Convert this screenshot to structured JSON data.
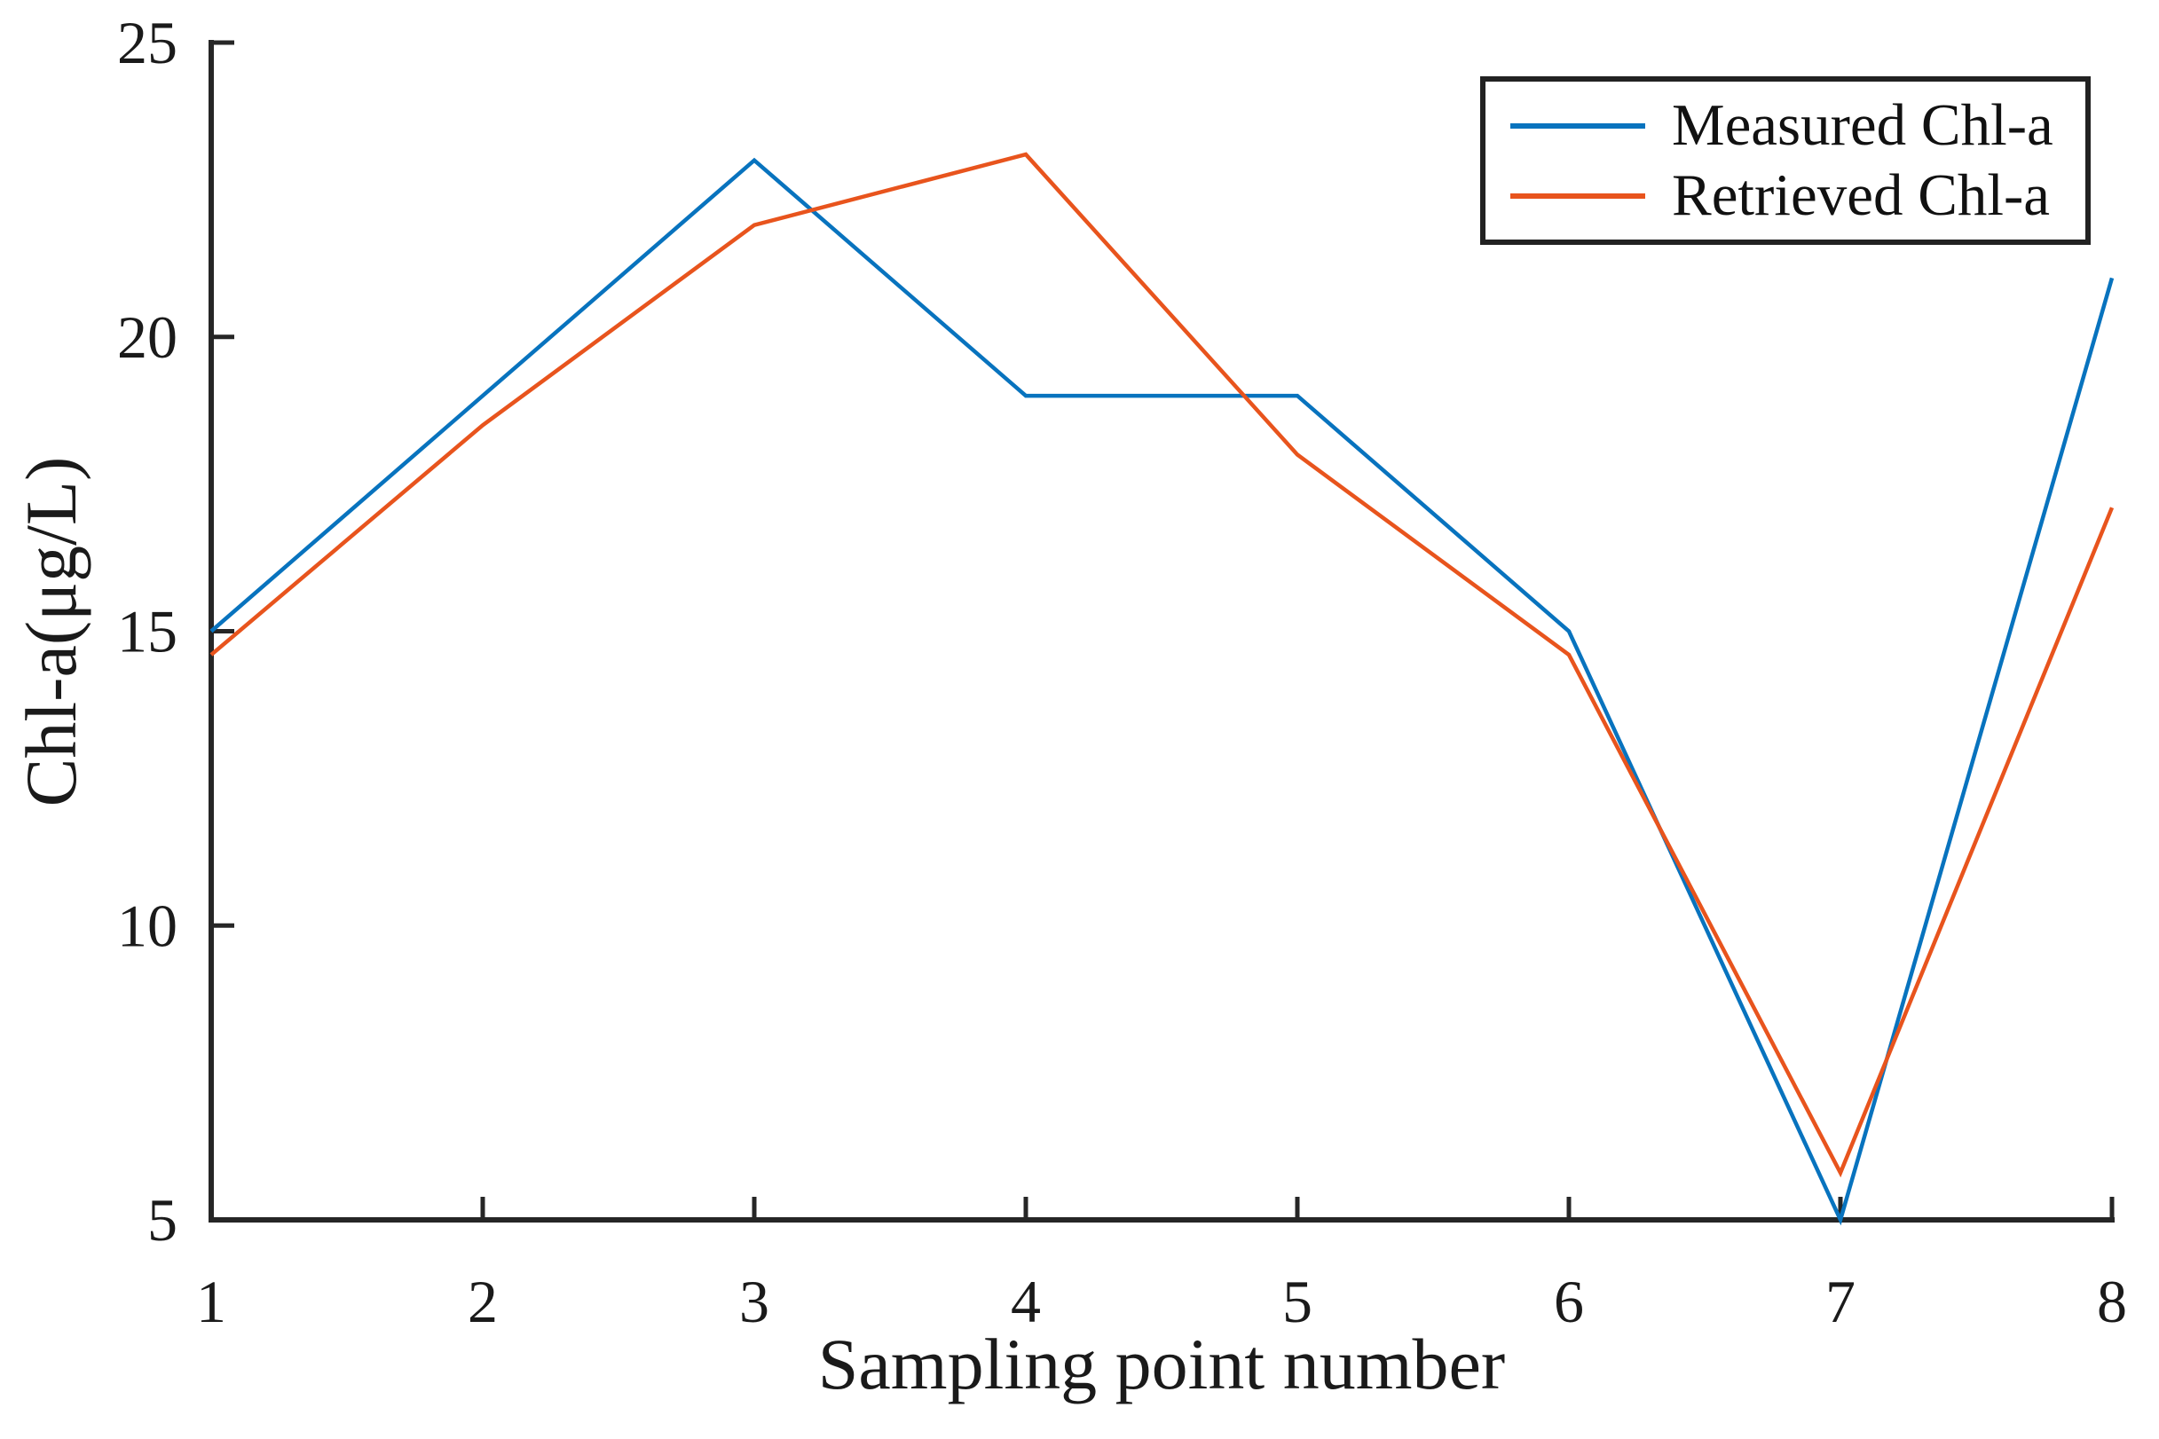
{
  "figure": {
    "background": "#ffffff",
    "axis_color": "#262626",
    "tick_label_color": "#1a1a1a"
  },
  "chart_data": {
    "type": "line",
    "title": "",
    "xlabel": "Sampling point number",
    "ylabel": "Chl-a(μg/L)",
    "x": [
      1,
      2,
      3,
      4,
      5,
      6,
      7,
      8
    ],
    "x_ticks": [
      "1",
      "2",
      "3",
      "4",
      "5",
      "6",
      "7",
      "8"
    ],
    "y_ticks": [
      "5",
      "10",
      "15",
      "20",
      "25"
    ],
    "xlim": [
      1,
      8
    ],
    "ylim": [
      5,
      25
    ],
    "grid": false,
    "legend_position": "top-right",
    "series": [
      {
        "name": "Measured Chl-a",
        "color": "#0873BE",
        "values": [
          15.0,
          19.0,
          23.0,
          19.0,
          19.0,
          15.0,
          5.0,
          21.0
        ]
      },
      {
        "name": "Retrieved Chl-a",
        "color": "#E8541D",
        "values": [
          14.6,
          18.5,
          21.9,
          23.1,
          18.0,
          14.6,
          5.8,
          17.1
        ]
      }
    ]
  }
}
